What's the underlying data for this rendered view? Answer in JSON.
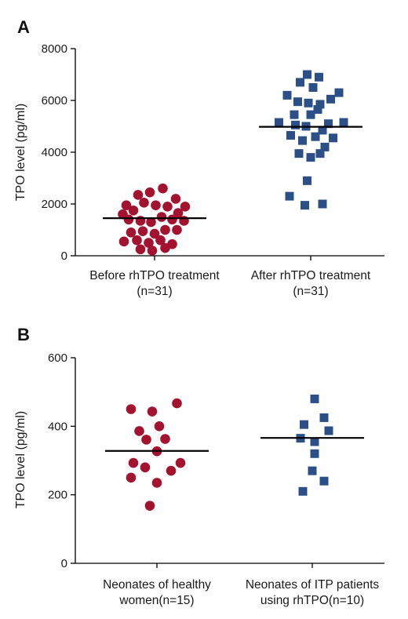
{
  "chart_data": [
    {
      "panel": "A",
      "type": "scatter",
      "ylabel": "TPO level (pg/ml)",
      "ylim": [
        0,
        8000
      ],
      "yticks": [
        "0",
        "2000",
        "4000",
        "6000",
        "8000"
      ],
      "categories": [
        [
          "Before rhTPO treatment",
          "(n=31)"
        ],
        [
          "After rhTPO treatment",
          "(n=31)"
        ]
      ],
      "series": [
        {
          "marker": "circle",
          "color": "#a3122f",
          "median": 1450,
          "points": [
            {
              "x": -0.24,
              "y": 1950
            },
            {
              "x": -0.14,
              "y": 2350
            },
            {
              "x": -0.04,
              "y": 2450
            },
            {
              "x": 0.07,
              "y": 2600
            },
            {
              "x": 0.18,
              "y": 2200
            },
            {
              "x": 0.26,
              "y": 1900
            },
            {
              "x": -0.18,
              "y": 1750
            },
            {
              "x": -0.09,
              "y": 2050
            },
            {
              "x": 0.01,
              "y": 1950
            },
            {
              "x": 0.11,
              "y": 1900
            },
            {
              "x": 0.2,
              "y": 1650
            },
            {
              "x": -0.27,
              "y": 1600
            },
            {
              "x": -0.22,
              "y": 1400
            },
            {
              "x": -0.12,
              "y": 1350
            },
            {
              "x": -0.03,
              "y": 1300
            },
            {
              "x": 0.06,
              "y": 1500
            },
            {
              "x": 0.15,
              "y": 1400
            },
            {
              "x": 0.25,
              "y": 1350
            },
            {
              "x": -0.2,
              "y": 900
            },
            {
              "x": -0.1,
              "y": 950
            },
            {
              "x": 0.0,
              "y": 850
            },
            {
              "x": 0.09,
              "y": 1000
            },
            {
              "x": 0.19,
              "y": 1000
            },
            {
              "x": -0.26,
              "y": 550
            },
            {
              "x": -0.15,
              "y": 600
            },
            {
              "x": -0.05,
              "y": 500
            },
            {
              "x": 0.05,
              "y": 600
            },
            {
              "x": 0.15,
              "y": 450
            },
            {
              "x": -0.12,
              "y": 250
            },
            {
              "x": -0.02,
              "y": 200
            },
            {
              "x": 0.09,
              "y": 300
            }
          ]
        },
        {
          "marker": "square",
          "color": "#2b4f86",
          "median": 4980,
          "points": [
            {
              "x": -0.03,
              "y": 7000
            },
            {
              "x": 0.07,
              "y": 6900
            },
            {
              "x": -0.09,
              "y": 6700
            },
            {
              "x": 0.02,
              "y": 6500
            },
            {
              "x": 0.24,
              "y": 6300
            },
            {
              "x": -0.2,
              "y": 6200
            },
            {
              "x": -0.11,
              "y": 5950
            },
            {
              "x": -0.02,
              "y": 5900
            },
            {
              "x": 0.08,
              "y": 5850
            },
            {
              "x": 0.17,
              "y": 6050
            },
            {
              "x": 0.06,
              "y": 5650
            },
            {
              "x": -0.14,
              "y": 5450
            },
            {
              "x": 0.0,
              "y": 5450
            },
            {
              "x": -0.27,
              "y": 5150
            },
            {
              "x": -0.13,
              "y": 5050
            },
            {
              "x": -0.04,
              "y": 5000
            },
            {
              "x": 0.15,
              "y": 5100
            },
            {
              "x": 0.28,
              "y": 5150
            },
            {
              "x": 0.1,
              "y": 4850
            },
            {
              "x": -0.17,
              "y": 4650
            },
            {
              "x": -0.07,
              "y": 4450
            },
            {
              "x": 0.04,
              "y": 4600
            },
            {
              "x": 0.19,
              "y": 4550
            },
            {
              "x": 0.12,
              "y": 4200
            },
            {
              "x": -0.1,
              "y": 3950
            },
            {
              "x": 0.0,
              "y": 3800
            },
            {
              "x": 0.08,
              "y": 3950
            },
            {
              "x": -0.03,
              "y": 2900
            },
            {
              "x": -0.18,
              "y": 2300
            },
            {
              "x": -0.05,
              "y": 1950
            },
            {
              "x": 0.1,
              "y": 2000
            }
          ]
        }
      ]
    },
    {
      "panel": "B",
      "type": "scatter",
      "ylabel": "TPO level (pg/ml)",
      "ylim": [
        0,
        600
      ],
      "yticks": [
        "0",
        "200",
        "400",
        "600"
      ],
      "categories": [
        [
          "Neonates of healthy",
          "women(n=15)"
        ],
        [
          "Neonates of ITP patients",
          "using rhTPO(n=10)"
        ]
      ],
      "series": [
        {
          "marker": "circle",
          "color": "#a3122f",
          "median": 328,
          "points": [
            {
              "x": 0.17,
              "y": 467
            },
            {
              "x": -0.22,
              "y": 450
            },
            {
              "x": -0.04,
              "y": 443
            },
            {
              "x": 0.02,
              "y": 400
            },
            {
              "x": -0.15,
              "y": 386
            },
            {
              "x": 0.07,
              "y": 363
            },
            {
              "x": -0.09,
              "y": 361
            },
            {
              "x": 0.0,
              "y": 327
            },
            {
              "x": -0.2,
              "y": 293
            },
            {
              "x": 0.2,
              "y": 293
            },
            {
              "x": -0.1,
              "y": 280
            },
            {
              "x": 0.12,
              "y": 270
            },
            {
              "x": -0.22,
              "y": 250
            },
            {
              "x": 0.0,
              "y": 235
            },
            {
              "x": -0.06,
              "y": 168
            }
          ]
        },
        {
          "marker": "square",
          "color": "#2b4f86",
          "median": 366,
          "points": [
            {
              "x": 0.02,
              "y": 480
            },
            {
              "x": 0.1,
              "y": 425
            },
            {
              "x": -0.07,
              "y": 405
            },
            {
              "x": 0.14,
              "y": 387
            },
            {
              "x": -0.1,
              "y": 365
            },
            {
              "x": 0.02,
              "y": 355
            },
            {
              "x": 0.02,
              "y": 320
            },
            {
              "x": 0.0,
              "y": 270
            },
            {
              "x": 0.1,
              "y": 240
            },
            {
              "x": -0.08,
              "y": 210
            }
          ]
        }
      ]
    }
  ]
}
